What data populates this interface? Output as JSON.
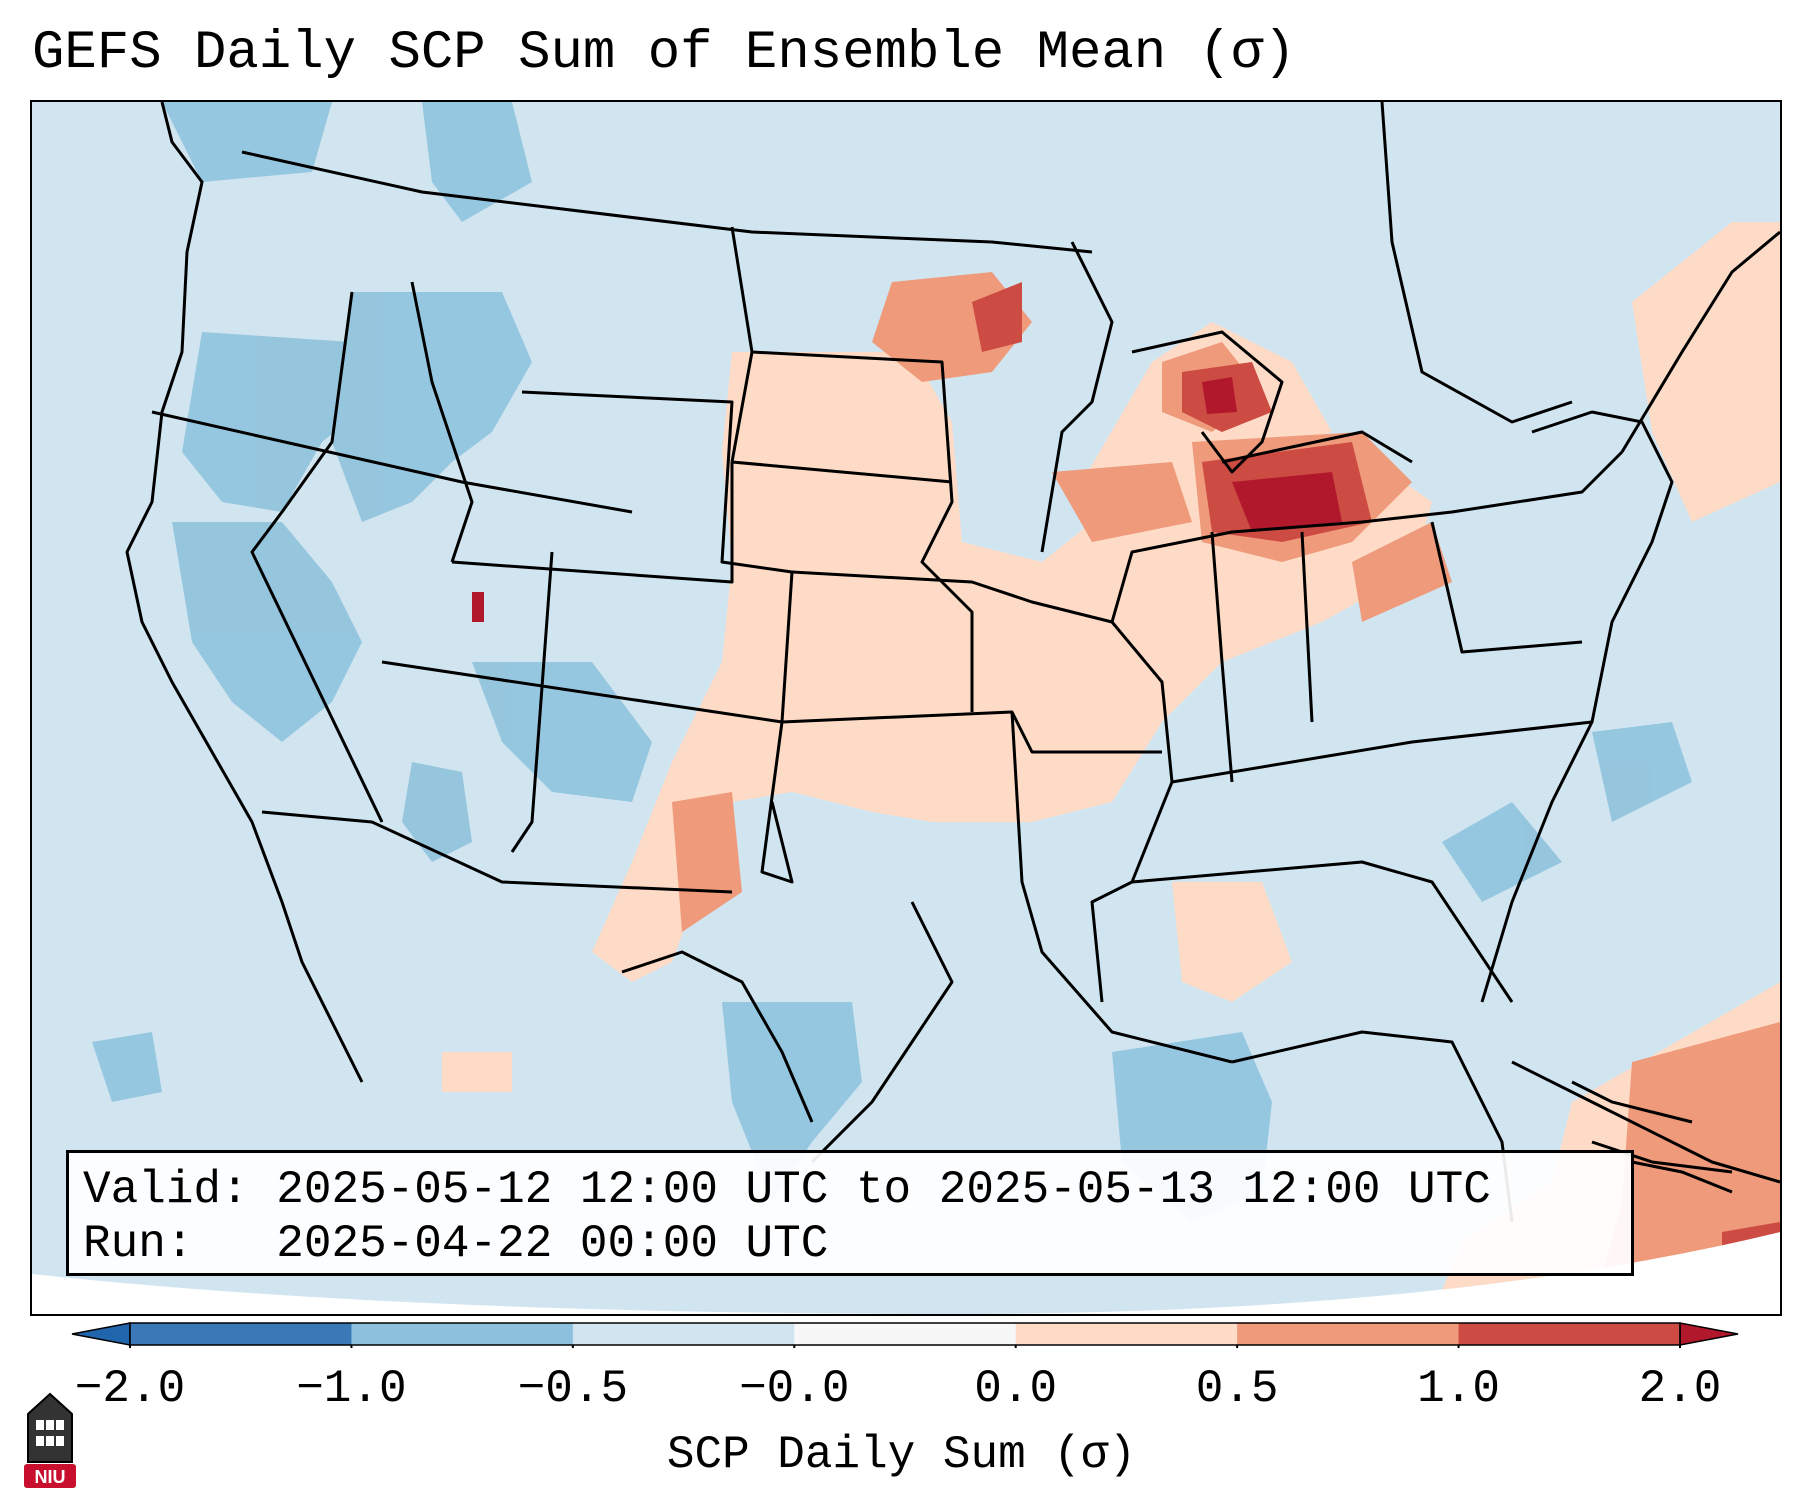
{
  "title": "GEFS Daily SCP Sum of Ensemble Mean (σ)",
  "info": {
    "valid_label": "Valid:",
    "valid_value": "2025-05-12 12:00 UTC to 2025-05-13 12:00 UTC",
    "run_label": "Run:",
    "run_value": "2025-04-22 00:00 UTC"
  },
  "colorbar": {
    "label": "SCP Daily Sum (σ)",
    "ticks": [
      "−2.0",
      "−1.0",
      "−0.5",
      "−0.0",
      "0.0",
      "0.5",
      "1.0",
      "2.0"
    ],
    "colors": [
      "#3a78b8",
      "#8cc0dd",
      "#d1e5f0",
      "#f7f7f7",
      "#fddbc7",
      "#ef9a7a",
      "#cc4c44"
    ],
    "extend_low_color": "#2166ac",
    "extend_high_color": "#b2182b"
  },
  "map": {
    "background_color": "#d1e5f0",
    "region": "Contiguous United States"
  },
  "logo": {
    "text": "NIU",
    "color": "#c8102e"
  }
}
